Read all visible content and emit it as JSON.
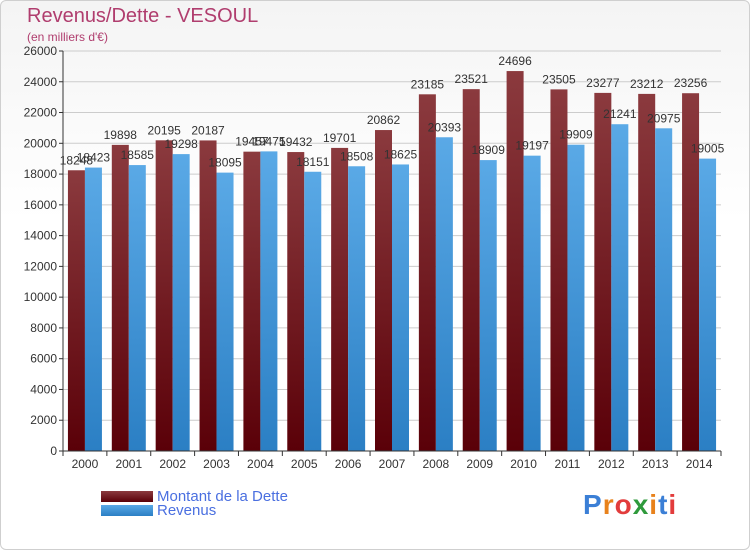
{
  "title": "Revenus/Dette - VESOUL",
  "subtitle": "(en milliers d'€)",
  "legend": {
    "dette_label": "Montant de la Dette",
    "revenus_label": "Revenus"
  },
  "logo": {
    "text": "Proxiti"
  },
  "colors": {
    "dette_top": "#8b3a3e",
    "dette_bottom": "#5a0008",
    "revenus_top": "#5aa9e6",
    "revenus_bottom": "#2b7fc4",
    "axis": "#333333",
    "grid": "#cccccc",
    "title": "#b03d6e"
  },
  "chart_data": {
    "type": "bar",
    "title": "Revenus/Dette - VESOUL",
    "subtitle": "(en milliers d'€)",
    "xlabel": "",
    "ylabel": "",
    "ylim": [
      0,
      26000
    ],
    "yticks": [
      0,
      2000,
      4000,
      6000,
      8000,
      10000,
      12000,
      14000,
      16000,
      18000,
      20000,
      22000,
      24000,
      26000
    ],
    "grid": true,
    "legend_position": "bottom-left",
    "categories": [
      "2000",
      "2001",
      "2002",
      "2003",
      "2004",
      "2005",
      "2006",
      "2007",
      "2008",
      "2009",
      "2010",
      "2011",
      "2012",
      "2013",
      "2014"
    ],
    "series": [
      {
        "name": "Montant de la Dette",
        "values": [
          18248,
          19898,
          20195,
          20187,
          19457,
          19432,
          19701,
          20862,
          23185,
          23521,
          24696,
          23505,
          23277,
          23212,
          23256
        ]
      },
      {
        "name": "Revenus",
        "values": [
          18423,
          18585,
          19298,
          18095,
          19475,
          18151,
          18508,
          18625,
          20393,
          18909,
          19197,
          19909,
          21241,
          20975,
          19005
        ]
      }
    ]
  }
}
